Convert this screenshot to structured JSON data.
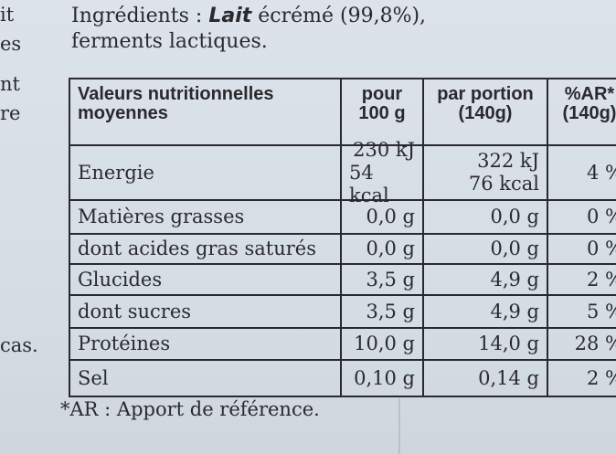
{
  "margin_fragments": [
    "it",
    "es",
    "nt",
    "re",
    "cas."
  ],
  "ingredients": {
    "label": "Ingrédients :",
    "highlight": "Lait",
    "rest": "écrémé (99,8%),",
    "line2": "ferments lactiques."
  },
  "table": {
    "header": [
      [
        "Valeurs nutritionnelles",
        "moyennes"
      ],
      [
        "pour",
        "100 g"
      ],
      [
        "par portion",
        "(140g)"
      ],
      [
        "%AR*",
        "(140g)"
      ]
    ],
    "rows": [
      [
        [
          "Energie"
        ],
        [
          "230 kJ",
          "54 kcal"
        ],
        [
          "322 kJ",
          "76 kcal"
        ],
        [
          "4 %"
        ]
      ],
      [
        [
          "Matières grasses"
        ],
        [
          "0,0 g"
        ],
        [
          "0,0 g"
        ],
        [
          "0 %"
        ]
      ],
      [
        [
          "dont acides gras saturés"
        ],
        [
          "0,0 g"
        ],
        [
          "0,0 g"
        ],
        [
          "0 %"
        ]
      ],
      [
        [
          "Glucides"
        ],
        [
          "3,5 g"
        ],
        [
          "4,9 g"
        ],
        [
          "2 %"
        ]
      ],
      [
        [
          "dont sucres"
        ],
        [
          "3,5 g"
        ],
        [
          "4,9 g"
        ],
        [
          "5 %"
        ]
      ],
      [
        [
          "Protéines"
        ],
        [
          "10,0 g"
        ],
        [
          "14,0 g"
        ],
        [
          "28 %"
        ]
      ],
      [
        [
          "Sel"
        ],
        [
          "0,10 g"
        ],
        [
          "0,14 g"
        ],
        [
          "2 %"
        ]
      ]
    ]
  },
  "footnote": "*AR : Apport de référence."
}
